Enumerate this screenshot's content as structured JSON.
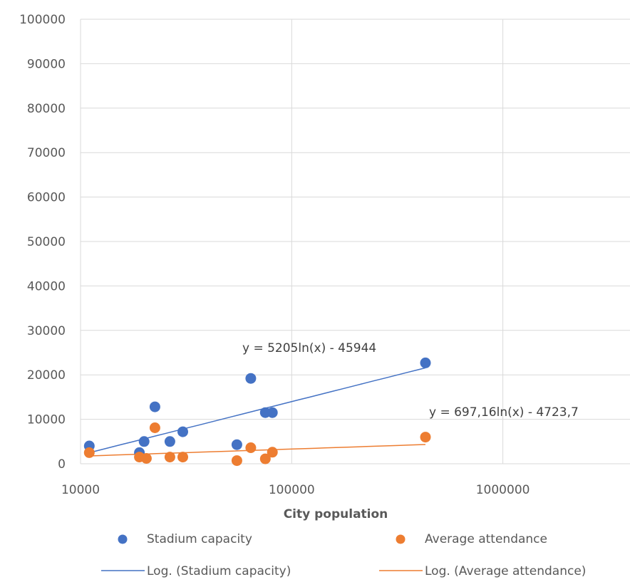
{
  "chart_data": {
    "type": "scatter",
    "title": "",
    "xlabel": "City population",
    "ylabel": "",
    "x_scale": "log",
    "xlim": [
      10000,
      4000000
    ],
    "ylim": [
      0,
      100000
    ],
    "x_ticks": [
      10000,
      100000,
      1000000
    ],
    "x_tick_labels": [
      "10000",
      "100000",
      "1000000"
    ],
    "y_ticks": [
      0,
      10000,
      20000,
      30000,
      40000,
      50000,
      60000,
      70000,
      80000,
      90000,
      100000
    ],
    "y_tick_labels": [
      "0",
      "10000",
      "20000",
      "30000",
      "40000",
      "50000",
      "60000",
      "70000",
      "80000",
      "90000",
      "100000"
    ],
    "grid": true,
    "legend_position": "bottom",
    "series": [
      {
        "name": "Stadium capacity",
        "color": "#4472C4",
        "points": [
          {
            "x": 11000,
            "y": 4000
          },
          {
            "x": 19000,
            "y": 2500
          },
          {
            "x": 20000,
            "y": 5000
          },
          {
            "x": 22500,
            "y": 12800
          },
          {
            "x": 26500,
            "y": 5000
          },
          {
            "x": 30500,
            "y": 7200
          },
          {
            "x": 55000,
            "y": 4300
          },
          {
            "x": 64000,
            "y": 19200
          },
          {
            "x": 75000,
            "y": 11500
          },
          {
            "x": 81000,
            "y": 11500
          },
          {
            "x": 430000,
            "y": 22700
          }
        ]
      },
      {
        "name": "Average attendance",
        "color": "#ED7D31",
        "points": [
          {
            "x": 11000,
            "y": 2500
          },
          {
            "x": 19000,
            "y": 1500
          },
          {
            "x": 20500,
            "y": 1200
          },
          {
            "x": 22500,
            "y": 8100
          },
          {
            "x": 26500,
            "y": 1500
          },
          {
            "x": 30500,
            "y": 1500
          },
          {
            "x": 55000,
            "y": 700
          },
          {
            "x": 64000,
            "y": 3600
          },
          {
            "x": 75000,
            "y": 1100
          },
          {
            "x": 81000,
            "y": 2600
          },
          {
            "x": 430000,
            "y": 6000
          }
        ]
      }
    ],
    "trendlines": [
      {
        "name": "Log. (Stadium capacity)",
        "color": "#4472C4",
        "a": 5205,
        "b": -45944,
        "x_range": [
          11000,
          430000
        ],
        "equation_label": "y = 5205ln(x) - 45944"
      },
      {
        "name": "Log. (Average attendance)",
        "color": "#ED7D31",
        "a": 697.16,
        "b": -4723.7,
        "x_range": [
          11000,
          430000
        ],
        "equation_label": "y = 697,16ln(x) - 4723,7"
      }
    ]
  }
}
